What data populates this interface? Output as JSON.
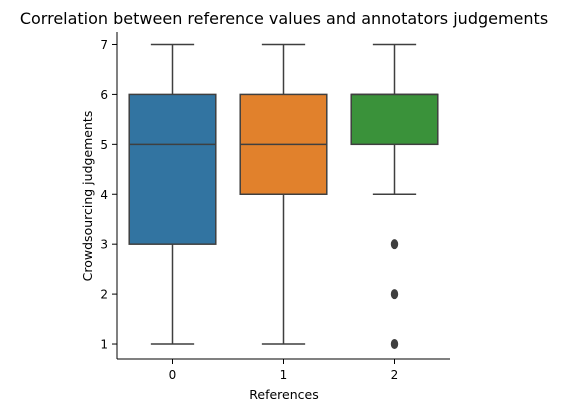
{
  "chart_data": {
    "type": "boxplot",
    "title": "Correlation between reference values and annotators judgements",
    "xlabel": "References",
    "ylabel": "Crowdsourcing judgements",
    "categories": [
      "0",
      "1",
      "2"
    ],
    "yticks": [
      1,
      2,
      3,
      4,
      5,
      6,
      7
    ],
    "ylim": [
      0.7,
      7.25
    ],
    "grid": false,
    "legend": "none",
    "boxes": [
      {
        "category": "0",
        "whisker_low": 1,
        "q1": 3,
        "median": 5,
        "q3": 6,
        "whisker_high": 7,
        "outliers": [],
        "color": "#3274a1"
      },
      {
        "category": "1",
        "whisker_low": 1,
        "q1": 4,
        "median": 5,
        "q3": 6,
        "whisker_high": 7,
        "outliers": [],
        "color": "#e1812c"
      },
      {
        "category": "2",
        "whisker_low": 4,
        "q1": 5,
        "median": 6,
        "q3": 6,
        "whisker_high": 7,
        "outliers": [
          1,
          2,
          3
        ],
        "color": "#3a923a"
      }
    ],
    "line_color": "#3f3f3f"
  }
}
